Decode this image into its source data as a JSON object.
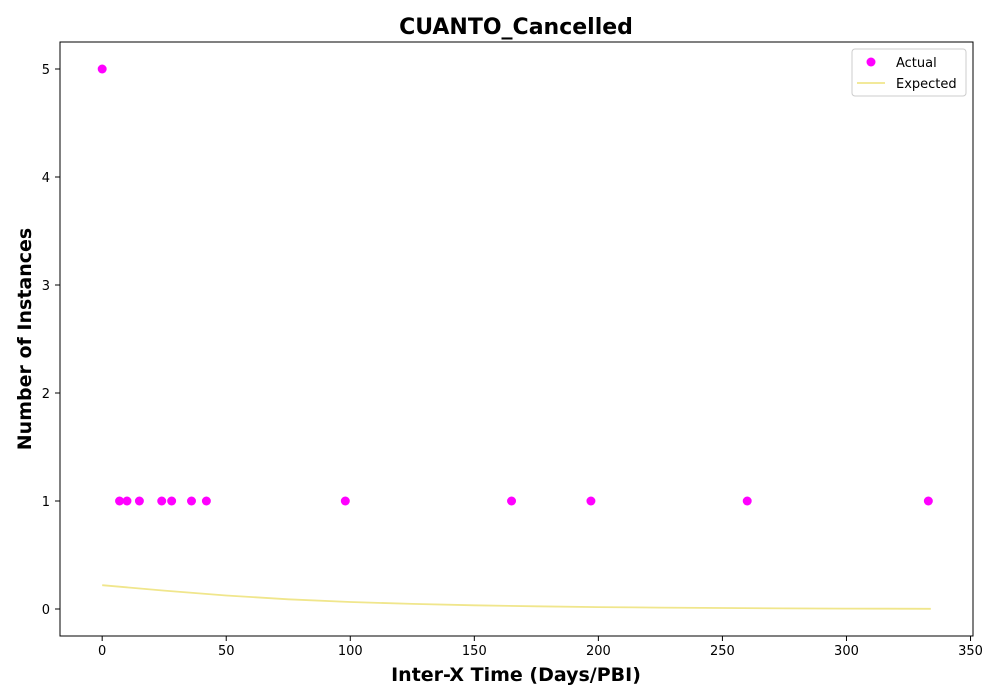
{
  "chart_data": {
    "type": "scatter",
    "title": "CUANTO_Cancelled",
    "xlabel": "Inter-X Time (Days/PBI)",
    "ylabel": "Number of Instances",
    "xlim": [
      -17,
      351
    ],
    "ylim": [
      -0.25,
      5.25
    ],
    "x_ticks": [
      0,
      50,
      100,
      150,
      200,
      250,
      300,
      350
    ],
    "y_ticks": [
      0,
      1,
      2,
      3,
      4,
      5
    ],
    "grid": false,
    "legend_position": "top-right",
    "series": [
      {
        "name": "Actual",
        "kind": "scatter",
        "color": "#ff00ff",
        "x": [
          0,
          7,
          10,
          15,
          24,
          28,
          36,
          42,
          98,
          165,
          197,
          260,
          333
        ],
        "y": [
          5,
          1,
          1,
          1,
          1,
          1,
          1,
          1,
          1,
          1,
          1,
          1,
          1
        ]
      },
      {
        "name": "Expected",
        "kind": "line",
        "color": "#f0e68c",
        "x": [
          0,
          25,
          50,
          75,
          100,
          125,
          150,
          175,
          200,
          225,
          250,
          275,
          300,
          334
        ],
        "y": [
          0.22,
          0.17,
          0.125,
          0.09,
          0.065,
          0.047,
          0.034,
          0.025,
          0.018,
          0.013,
          0.009,
          0.006,
          0.004,
          0.002
        ]
      }
    ]
  }
}
